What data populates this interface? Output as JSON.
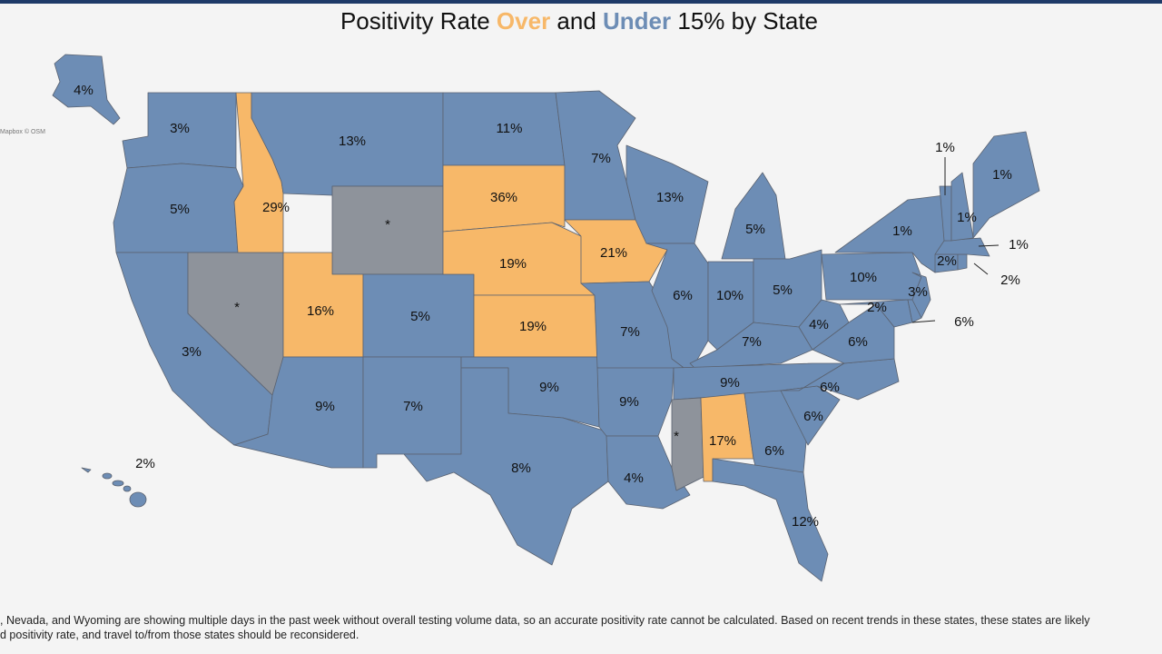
{
  "title": {
    "parts": [
      {
        "text": "Positivity Rate ",
        "color": "#111111"
      },
      {
        "text": "Over",
        "color": "#f7b869"
      },
      {
        "text": " and ",
        "color": "#111111"
      },
      {
        "text": "Under",
        "color": "#6d8db5"
      },
      {
        "text": " 15% by State",
        "color": "#111111"
      }
    ]
  },
  "attribution": "Mapbox © OSM",
  "states": [
    {
      "label": "3%",
      "color": "#6d8db5"
    },
    {
      "label": "5%",
      "color": "#6d8db5"
    },
    {
      "label": "3%",
      "color": "#6d8db5"
    },
    {
      "label": "*",
      "color": "#8e939b"
    },
    {
      "label": "29%",
      "color": "#f7b869"
    },
    {
      "label": "13%",
      "color": "#6d8db5"
    },
    {
      "label": "*",
      "color": "#8e939b"
    },
    {
      "label": "16%",
      "color": "#f7b869"
    },
    {
      "label": "5%",
      "color": "#6d8db5"
    },
    {
      "label": "9%",
      "color": "#6d8db5"
    },
    {
      "label": "7%",
      "color": "#6d8db5"
    },
    {
      "label": "11%",
      "color": "#6d8db5"
    },
    {
      "label": "36%",
      "color": "#f7b869"
    },
    {
      "label": "19%",
      "color": "#f7b869"
    },
    {
      "label": "19%",
      "color": "#f7b869"
    },
    {
      "label": "9%",
      "color": "#6d8db5"
    },
    {
      "label": "8%",
      "color": "#6d8db5"
    },
    {
      "label": "7%",
      "color": "#6d8db5"
    },
    {
      "label": "21%",
      "color": "#f7b869"
    },
    {
      "label": "7%",
      "color": "#6d8db5"
    },
    {
      "label": "9%",
      "color": "#6d8db5"
    },
    {
      "label": "4%",
      "color": "#6d8db5"
    },
    {
      "label": "13%",
      "color": "#6d8db5"
    },
    {
      "label": "6%",
      "color": "#6d8db5"
    },
    {
      "label": "5%",
      "color": "#6d8db5"
    },
    {
      "label": "10%",
      "color": "#6d8db5"
    },
    {
      "label": "5%",
      "color": "#6d8db5"
    },
    {
      "label": "7%",
      "color": "#6d8db5"
    },
    {
      "label": "9%",
      "color": "#6d8db5"
    },
    {
      "label": "*",
      "color": "#8e939b"
    },
    {
      "label": "17%",
      "color": "#f7b869"
    },
    {
      "label": "6%",
      "color": "#6d8db5"
    },
    {
      "label": "12%",
      "color": "#6d8db5"
    },
    {
      "label": "6%",
      "color": "#6d8db5"
    },
    {
      "label": "6%",
      "color": "#6d8db5"
    },
    {
      "label": "6%",
      "color": "#6d8db5"
    },
    {
      "label": "4%",
      "color": "#6d8db5"
    },
    {
      "label": "10%",
      "color": "#6d8db5"
    },
    {
      "label": "1%",
      "color": "#6d8db5"
    },
    {
      "label": "2%",
      "color": "#6d8db5"
    },
    {
      "label": "6%",
      "color": "#6d8db5"
    },
    {
      "label": "3%",
      "color": "#6d8db5"
    },
    {
      "label": "2%",
      "color": "#6d8db5"
    },
    {
      "label": "2%",
      "color": "#6d8db5"
    },
    {
      "label": "1%",
      "color": "#6d8db5"
    },
    {
      "label": "1%",
      "color": "#6d8db5"
    },
    {
      "label": "1%",
      "color": "#6d8db5"
    },
    {
      "label": "1%",
      "color": "#6d8db5"
    },
    {
      "label": "4%",
      "color": "#6d8db5"
    },
    {
      "label": "2%",
      "color": "#6d8db5"
    }
  ],
  "footnote": [
    ", Nevada, and Wyoming are showing multiple days in the past week without overall testing volume data, so an accurate positivity rate cannot be calculated. Based on recent trends in these states, these states are likely",
    "d positivity rate, and travel to/from those states should be reconsidered."
  ]
}
